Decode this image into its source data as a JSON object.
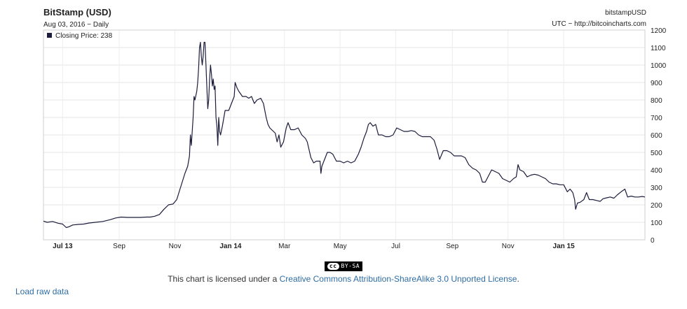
{
  "header": {
    "title": "BitStamp (USD)",
    "subtitle": "Aug 03, 2016 − Daily",
    "legend_label": "Closing Price: 238",
    "legend_color": "#1c1c3c",
    "symbol": "bitstampUSD",
    "source": "UTC − http://bitcoincharts.com"
  },
  "license": {
    "badge_cc": "cc",
    "badge_text": "BY-SA",
    "prefix": "This chart is licensed under a ",
    "link_text": "Creative Commons Attribution-ShareAlike 3.0 Unported License",
    "suffix": "."
  },
  "links": {
    "load_raw": "Load raw data"
  },
  "chart_data": {
    "type": "line",
    "title": "BitStamp (USD)",
    "series": [
      {
        "name": "Closing Price",
        "color": "#1c1c3c",
        "points": [
          [
            "2013-06-10",
            107
          ],
          [
            "2013-06-14",
            100
          ],
          [
            "2013-06-20",
            105
          ],
          [
            "2013-06-26",
            95
          ],
          [
            "2013-07-01",
            90
          ],
          [
            "2013-07-05",
            70
          ],
          [
            "2013-07-08",
            75
          ],
          [
            "2013-07-12",
            85
          ],
          [
            "2013-07-18",
            88
          ],
          [
            "2013-07-24",
            90
          ],
          [
            "2013-07-30",
            96
          ],
          [
            "2013-08-06",
            100
          ],
          [
            "2013-08-14",
            105
          ],
          [
            "2013-08-22",
            115
          ],
          [
            "2013-08-28",
            125
          ],
          [
            "2013-09-03",
            130
          ],
          [
            "2013-09-10",
            128
          ],
          [
            "2013-09-17",
            128
          ],
          [
            "2013-09-24",
            128
          ],
          [
            "2013-10-01",
            130
          ],
          [
            "2013-10-05",
            130
          ],
          [
            "2013-10-10",
            135
          ],
          [
            "2013-10-15",
            145
          ],
          [
            "2013-10-20",
            175
          ],
          [
            "2013-10-25",
            200
          ],
          [
            "2013-10-30",
            205
          ],
          [
            "2013-11-03",
            230
          ],
          [
            "2013-11-06",
            280
          ],
          [
            "2013-11-09",
            330
          ],
          [
            "2013-11-12",
            380
          ],
          [
            "2013-11-15",
            420
          ],
          [
            "2013-11-17",
            480
          ],
          [
            "2013-11-18",
            600
          ],
          [
            "2013-11-19",
            540
          ],
          [
            "2013-11-21",
            700
          ],
          [
            "2013-11-22",
            820
          ],
          [
            "2013-11-23",
            800
          ],
          [
            "2013-11-25",
            850
          ],
          [
            "2013-11-26",
            900
          ],
          [
            "2013-11-27",
            980
          ],
          [
            "2013-11-28",
            1100
          ],
          [
            "2013-11-29",
            1130
          ],
          [
            "2013-11-30",
            1050
          ],
          [
            "2013-12-01",
            1000
          ],
          [
            "2013-12-02",
            1050
          ],
          [
            "2013-12-03",
            1130
          ],
          [
            "2013-12-04",
            1130
          ],
          [
            "2013-12-05",
            1000
          ],
          [
            "2013-12-06",
            870
          ],
          [
            "2013-12-07",
            750
          ],
          [
            "2013-12-08",
            800
          ],
          [
            "2013-12-09",
            920
          ],
          [
            "2013-12-10",
            1000
          ],
          [
            "2013-12-11",
            950
          ],
          [
            "2013-12-12",
            880
          ],
          [
            "2013-12-13",
            920
          ],
          [
            "2013-12-14",
            860
          ],
          [
            "2013-12-15",
            880
          ],
          [
            "2013-12-16",
            700
          ],
          [
            "2013-12-17",
            650
          ],
          [
            "2013-12-18",
            540
          ],
          [
            "2013-12-19",
            700
          ],
          [
            "2013-12-20",
            620
          ],
          [
            "2013-12-21",
            600
          ],
          [
            "2013-12-23",
            650
          ],
          [
            "2013-12-26",
            740
          ],
          [
            "2013-12-30",
            740
          ],
          [
            "2014-01-02",
            780
          ],
          [
            "2014-01-05",
            820
          ],
          [
            "2014-01-06",
            900
          ],
          [
            "2014-01-08",
            870
          ],
          [
            "2014-01-10",
            850
          ],
          [
            "2014-01-14",
            820
          ],
          [
            "2014-01-18",
            820
          ],
          [
            "2014-01-21",
            810
          ],
          [
            "2014-01-24",
            820
          ],
          [
            "2014-01-27",
            780
          ],
          [
            "2014-01-30",
            800
          ],
          [
            "2014-02-03",
            810
          ],
          [
            "2014-02-06",
            780
          ],
          [
            "2014-02-09",
            700
          ],
          [
            "2014-02-11",
            660
          ],
          [
            "2014-02-13",
            640
          ],
          [
            "2014-02-17",
            620
          ],
          [
            "2014-02-19",
            610
          ],
          [
            "2014-02-21",
            560
          ],
          [
            "2014-02-23",
            600
          ],
          [
            "2014-02-25",
            530
          ],
          [
            "2014-02-28",
            560
          ],
          [
            "2014-03-03",
            640
          ],
          [
            "2014-03-05",
            670
          ],
          [
            "2014-03-08",
            630
          ],
          [
            "2014-03-12",
            630
          ],
          [
            "2014-03-16",
            640
          ],
          [
            "2014-03-20",
            600
          ],
          [
            "2014-03-24",
            580
          ],
          [
            "2014-03-26",
            560
          ],
          [
            "2014-03-30",
            470
          ],
          [
            "2014-04-02",
            440
          ],
          [
            "2014-04-05",
            450
          ],
          [
            "2014-04-09",
            450
          ],
          [
            "2014-04-10",
            380
          ],
          [
            "2014-04-11",
            420
          ],
          [
            "2014-04-14",
            460
          ],
          [
            "2014-04-17",
            500
          ],
          [
            "2014-04-20",
            500
          ],
          [
            "2014-04-23",
            490
          ],
          [
            "2014-04-27",
            450
          ],
          [
            "2014-05-01",
            450
          ],
          [
            "2014-05-05",
            440
          ],
          [
            "2014-05-09",
            450
          ],
          [
            "2014-05-13",
            440
          ],
          [
            "2014-05-17",
            450
          ],
          [
            "2014-05-21",
            490
          ],
          [
            "2014-05-24",
            530
          ],
          [
            "2014-05-27",
            580
          ],
          [
            "2014-05-30",
            620
          ],
          [
            "2014-06-01",
            660
          ],
          [
            "2014-06-03",
            670
          ],
          [
            "2014-06-06",
            650
          ],
          [
            "2014-06-09",
            660
          ],
          [
            "2014-06-12",
            600
          ],
          [
            "2014-06-16",
            600
          ],
          [
            "2014-06-20",
            590
          ],
          [
            "2014-06-24",
            590
          ],
          [
            "2014-06-28",
            600
          ],
          [
            "2014-07-02",
            640
          ],
          [
            "2014-07-06",
            630
          ],
          [
            "2014-07-10",
            620
          ],
          [
            "2014-07-14",
            620
          ],
          [
            "2014-07-18",
            625
          ],
          [
            "2014-07-22",
            620
          ],
          [
            "2014-07-26",
            600
          ],
          [
            "2014-07-30",
            590
          ],
          [
            "2014-08-04",
            590
          ],
          [
            "2014-08-08",
            590
          ],
          [
            "2014-08-12",
            570
          ],
          [
            "2014-08-15",
            520
          ],
          [
            "2014-08-18",
            460
          ],
          [
            "2014-08-22",
            510
          ],
          [
            "2014-08-26",
            510
          ],
          [
            "2014-08-30",
            500
          ],
          [
            "2014-09-03",
            480
          ],
          [
            "2014-09-07",
            480
          ],
          [
            "2014-09-11",
            480
          ],
          [
            "2014-09-15",
            470
          ],
          [
            "2014-09-19",
            430
          ],
          [
            "2014-09-23",
            410
          ],
          [
            "2014-09-27",
            400
          ],
          [
            "2014-10-01",
            380
          ],
          [
            "2014-10-04",
            330
          ],
          [
            "2014-10-07",
            330
          ],
          [
            "2014-10-10",
            360
          ],
          [
            "2014-10-14",
            400
          ],
          [
            "2014-10-18",
            390
          ],
          [
            "2014-10-22",
            380
          ],
          [
            "2014-10-26",
            350
          ],
          [
            "2014-10-30",
            340
          ],
          [
            "2014-11-03",
            330
          ],
          [
            "2014-11-07",
            350
          ],
          [
            "2014-11-10",
            360
          ],
          [
            "2014-11-12",
            430
          ],
          [
            "2014-11-14",
            400
          ],
          [
            "2014-11-18",
            390
          ],
          [
            "2014-11-22",
            360
          ],
          [
            "2014-11-26",
            370
          ],
          [
            "2014-11-30",
            375
          ],
          [
            "2014-12-04",
            370
          ],
          [
            "2014-12-08",
            360
          ],
          [
            "2014-12-12",
            350
          ],
          [
            "2014-12-16",
            330
          ],
          [
            "2014-12-20",
            320
          ],
          [
            "2014-12-24",
            320
          ],
          [
            "2014-12-28",
            315
          ],
          [
            "2015-01-01",
            315
          ],
          [
            "2015-01-05",
            275
          ],
          [
            "2015-01-08",
            290
          ],
          [
            "2015-01-11",
            270
          ],
          [
            "2015-01-13",
            230
          ],
          [
            "2015-01-14",
            175
          ],
          [
            "2015-01-16",
            210
          ],
          [
            "2015-01-19",
            215
          ],
          [
            "2015-01-23",
            230
          ],
          [
            "2015-01-26",
            270
          ],
          [
            "2015-01-29",
            230
          ],
          [
            "2015-02-02",
            230
          ],
          [
            "2015-02-06",
            225
          ],
          [
            "2015-02-10",
            220
          ],
          [
            "2015-02-13",
            235
          ],
          [
            "2015-02-17",
            240
          ],
          [
            "2015-02-21",
            245
          ],
          [
            "2015-02-25",
            238
          ],
          [
            "2015-03-01",
            258
          ],
          [
            "2015-03-05",
            275
          ],
          [
            "2015-03-09",
            290
          ],
          [
            "2015-03-12",
            245
          ],
          [
            "2015-03-16",
            250
          ],
          [
            "2015-03-20",
            245
          ],
          [
            "2015-03-24",
            245
          ],
          [
            "2015-03-28",
            248
          ],
          [
            "2015-03-31",
            245
          ]
        ]
      }
    ],
    "x_ticks": [
      {
        "date": "2013-07-01",
        "label": "Jul 13",
        "bold": true
      },
      {
        "date": "2013-09-01",
        "label": "Sep",
        "bold": false
      },
      {
        "date": "2013-11-01",
        "label": "Nov",
        "bold": false
      },
      {
        "date": "2014-01-01",
        "label": "Jan 14",
        "bold": true
      },
      {
        "date": "2014-03-01",
        "label": "Mar",
        "bold": false
      },
      {
        "date": "2014-05-01",
        "label": "May",
        "bold": false
      },
      {
        "date": "2014-07-01",
        "label": "Jul",
        "bold": false
      },
      {
        "date": "2014-09-01",
        "label": "Sep",
        "bold": false
      },
      {
        "date": "2014-11-01",
        "label": "Nov",
        "bold": false
      },
      {
        "date": "2015-01-01",
        "label": "Jan 15",
        "bold": true
      }
    ],
    "y_ticks": [
      0,
      100,
      200,
      300,
      400,
      500,
      600,
      700,
      800,
      900,
      1000,
      1100,
      1200
    ],
    "xlim": [
      "2013-06-10",
      "2015-03-31"
    ],
    "ylim": [
      0,
      1200
    ],
    "y_axis_side": "right",
    "grid": true,
    "legend_position": "top-left"
  }
}
